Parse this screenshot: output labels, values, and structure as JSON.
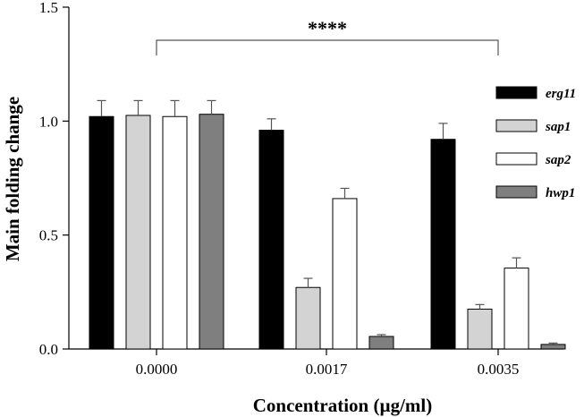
{
  "chart_data": {
    "type": "bar",
    "title": "",
    "xlabel": "Concentration (µg/ml)",
    "ylabel": "Main folding change",
    "ylim": [
      0,
      1.5
    ],
    "yticks": [
      0.0,
      0.5,
      1.0,
      1.5
    ],
    "ytick_labels": [
      "0.0",
      "0.5",
      "1.0",
      "1.5"
    ],
    "categories": [
      "0.0000",
      "0.0017",
      "0.0035"
    ],
    "series": [
      {
        "name": "erg11",
        "color": "#000000",
        "values": [
          1.02,
          0.96,
          0.92
        ],
        "errors": [
          0.07,
          0.05,
          0.07
        ]
      },
      {
        "name": "sap1",
        "color": "#d3d3d3",
        "values": [
          1.025,
          0.27,
          0.175
        ],
        "errors": [
          0.065,
          0.04,
          0.02
        ]
      },
      {
        "name": "sap2",
        "color": "#ffffff",
        "values": [
          1.02,
          0.66,
          0.355
        ],
        "errors": [
          0.07,
          0.045,
          0.045
        ]
      },
      {
        "name": "hwp1",
        "color": "#7f7f7f",
        "values": [
          1.03,
          0.055,
          0.02
        ],
        "errors": [
          0.06,
          0.008,
          0.006
        ]
      }
    ],
    "significance": {
      "label": "****",
      "from_category": "0.0000",
      "to_category": "0.0035"
    },
    "legend_position": "right"
  }
}
